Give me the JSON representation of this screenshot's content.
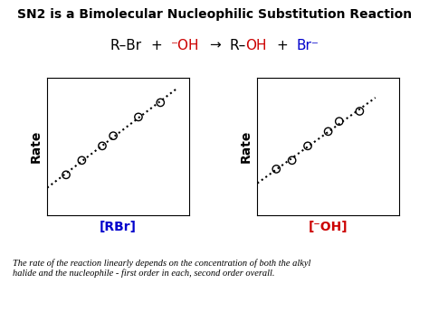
{
  "title": "SN2 is a Bimolecular Nucleophilic Substitution Reaction",
  "annotations": [
    {
      "text": "R–Br",
      "color": "#000000"
    },
    {
      "text": "+",
      "color": "#000000"
    },
    {
      "text": "⁻OH",
      "color": "#cc0000"
    },
    {
      "text": "→",
      "color": "#000000"
    },
    {
      "text": "R–",
      "color": "#000000"
    },
    {
      "text": "OH",
      "color": "#cc0000"
    },
    {
      "text": "+",
      "color": "#000000"
    },
    {
      "text": "Br⁻",
      "color": "#0000cc"
    }
  ],
  "footer": [
    "The rate of the reaction linearly depends on the concentration of both the alkyl",
    "halide and the nucleophile - first order in each, second order overall."
  ],
  "chart_data": [
    {
      "type": "scatter",
      "xlabel": "[RBr]",
      "xlabel_color": "#0000cc",
      "ylabel": "Rate",
      "xlim": [
        0,
        0.9
      ],
      "ylim": [
        0,
        0.95
      ],
      "tick_labels": false,
      "series": [
        {
          "type": "scatter",
          "color": "#000000",
          "marker": "open circle",
          "x": [
            0.12,
            0.22,
            0.35,
            0.42,
            0.58,
            0.72
          ],
          "values": [
            0.28,
            0.38,
            0.48,
            0.55,
            0.68,
            0.78
          ]
        },
        {
          "type": "line",
          "color": "#000000",
          "line_style": "dotted",
          "x": [
            0,
            0.82
          ],
          "values": [
            0.1905,
            0.8734
          ]
        }
      ]
    },
    {
      "type": "scatter",
      "xlabel": "[⁻OH]",
      "xlabel_color": "#cc0000",
      "ylabel": "Rate",
      "xlim": [
        0,
        0.9
      ],
      "ylim": [
        0,
        0.95
      ],
      "tick_labels": false,
      "series": [
        {
          "type": "scatter",
          "color": "#000000",
          "marker": "open circle",
          "x": [
            0.12,
            0.22,
            0.32,
            0.45,
            0.52,
            0.65
          ],
          "values": [
            0.32,
            0.38,
            0.48,
            0.58,
            0.65,
            0.72
          ]
        },
        {
          "type": "line",
          "color": "#000000",
          "line_style": "dotted",
          "x": [
            0,
            0.75
          ],
          "values": [
            0.2219,
            0.8136
          ]
        }
      ]
    }
  ]
}
